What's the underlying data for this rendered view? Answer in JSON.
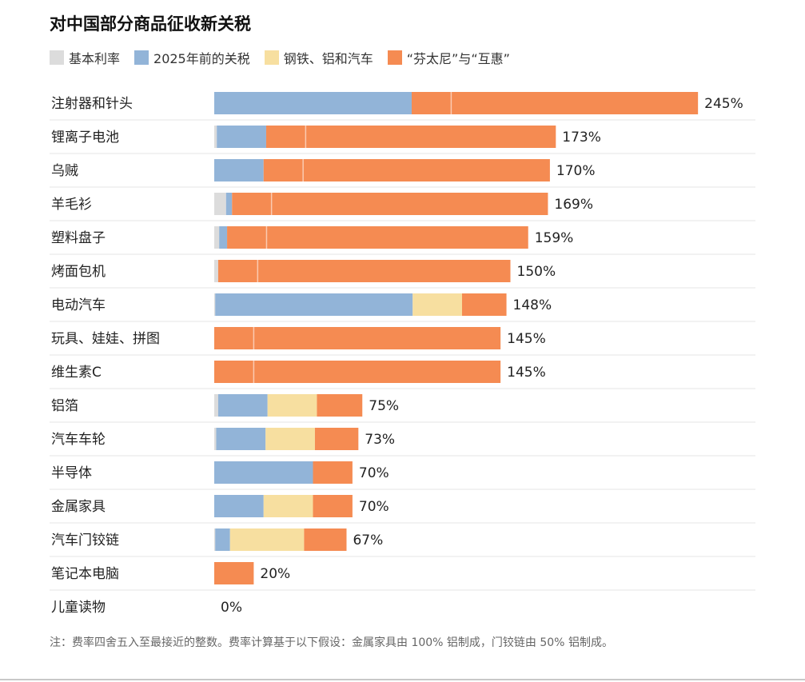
{
  "chart_data": {
    "type": "bar",
    "orientation": "horizontal",
    "stacked": true,
    "title": "对中国部分商品征收新关税",
    "categories": [
      "注射器和针头",
      "锂离子电池",
      "乌贼",
      "羊毛衫",
      "塑料盘子",
      "烤面包机",
      "电动汽车",
      "玩具、娃娃、拼图",
      "维生素C",
      "铝箔",
      "汽车车轮",
      "半导体",
      "金属家具",
      "汽车门铰链",
      "笔记本电脑",
      "儿童读物"
    ],
    "series": [
      {
        "name": "基本利率",
        "color": "#dcdcdc",
        "values": [
          0,
          1.3,
          0,
          6,
          2.5,
          2,
          0.5,
          0,
          0,
          2,
          1,
          0,
          0,
          0.5,
          0,
          0
        ]
      },
      {
        "name": "2025年前的关税",
        "color": "#92b4d8",
        "values": [
          100,
          25,
          25,
          3,
          4,
          0,
          100,
          0,
          0,
          25,
          25,
          50,
          25,
          7.5,
          0,
          0
        ]
      },
      {
        "name": "钢铁、铝和汽车",
        "color": "#f7dfa0",
        "values": [
          0,
          0,
          0,
          0,
          0,
          0,
          25,
          0,
          0,
          25,
          25,
          0,
          25,
          37.5,
          0,
          0
        ]
      },
      {
        "name": "“芬太尼”与“互惠”",
        "color": "#f58b52",
        "values": [
          145,
          146.7,
          145,
          160,
          152.5,
          148,
          22.5,
          145,
          145,
          23,
          22,
          20,
          20,
          21.5,
          20,
          0
        ]
      }
    ],
    "fentanyl_split": [
      20,
      20,
      20,
      20,
      20,
      20,
      0,
      20,
      20,
      0,
      0,
      0,
      0,
      0,
      0,
      0
    ],
    "totals": [
      "245%",
      "173%",
      "170%",
      "169%",
      "159%",
      "150%",
      "148%",
      "145%",
      "145%",
      "75%",
      "73%",
      "70%",
      "70%",
      "67%",
      "20%",
      "0%"
    ],
    "xlim": [
      0,
      245
    ],
    "legend_position": "top-left",
    "grid": false
  },
  "note": "注：费率四舍五入至最接近的整数。费率计算基于以下假设：金属家具由 100% 铝制成，门铰链由 50% 铝制成。"
}
